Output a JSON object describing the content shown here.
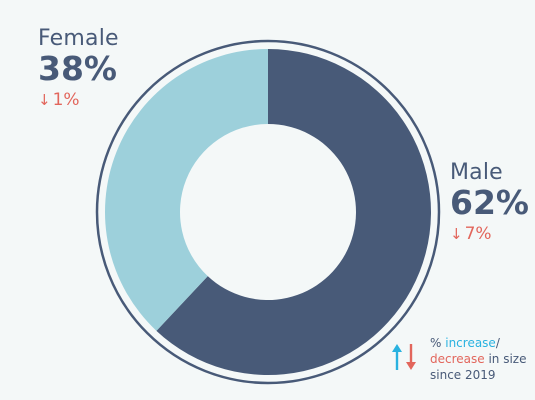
{
  "chart_data": {
    "type": "pie",
    "style": "donut",
    "categories": [
      "Male",
      "Female"
    ],
    "values": [
      62,
      38
    ],
    "value_labels": [
      "62%",
      "38%"
    ],
    "changes": [
      "7%",
      "1%"
    ],
    "change_direction": [
      "decrease",
      "decrease"
    ],
    "colors": [
      "#485a78",
      "#9dd0db"
    ]
  },
  "labels": {
    "female": {
      "name": "Female",
      "pct": "38%",
      "change": "1%",
      "arrow": "↓"
    },
    "male": {
      "name": "Male",
      "pct": "62%",
      "change": "7%",
      "arrow": "↓"
    }
  },
  "legend": {
    "pct_prefix": "%",
    "increase": "increase",
    "slash": "/",
    "decrease": "decrease",
    "rest_line2": "in size",
    "line3": "since 2019",
    "increase_color": "#29b2e0",
    "decrease_color": "#e2665c"
  }
}
